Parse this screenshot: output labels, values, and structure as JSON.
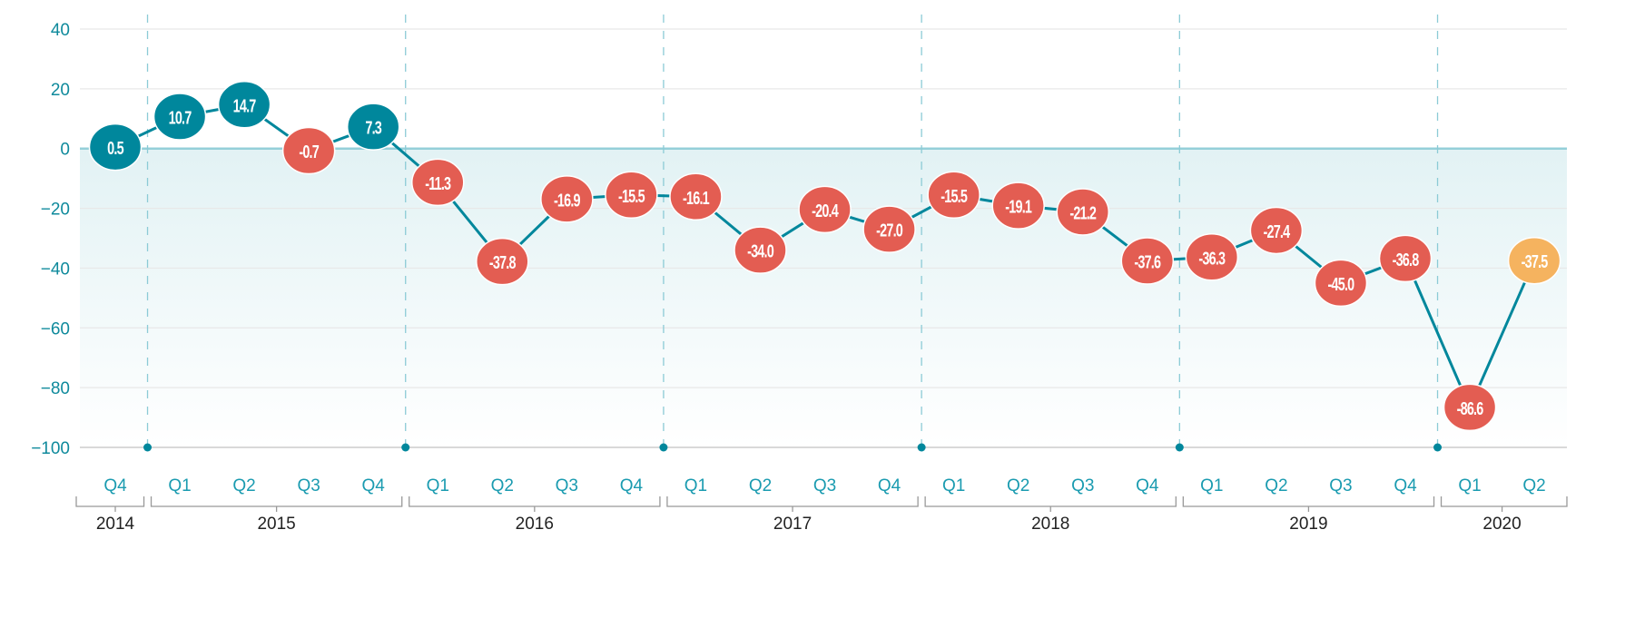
{
  "chart_data": {
    "type": "line",
    "title": "",
    "xlabel": "",
    "ylabel": "",
    "ylim": [
      -100,
      40
    ],
    "yticks": [
      40,
      20,
      0,
      -20,
      -40,
      -60,
      -80,
      -100
    ],
    "grid": true,
    "categories": [
      {
        "year": "2014",
        "q": "Q4"
      },
      {
        "year": "2015",
        "q": "Q1"
      },
      {
        "year": "2015",
        "q": "Q2"
      },
      {
        "year": "2015",
        "q": "Q3"
      },
      {
        "year": "2015",
        "q": "Q4"
      },
      {
        "year": "2016",
        "q": "Q1"
      },
      {
        "year": "2016",
        "q": "Q2"
      },
      {
        "year": "2016",
        "q": "Q3"
      },
      {
        "year": "2016",
        "q": "Q4"
      },
      {
        "year": "2017",
        "q": "Q1"
      },
      {
        "year": "2017",
        "q": "Q2"
      },
      {
        "year": "2017",
        "q": "Q3"
      },
      {
        "year": "2017",
        "q": "Q4"
      },
      {
        "year": "2018",
        "q": "Q1"
      },
      {
        "year": "2018",
        "q": "Q2"
      },
      {
        "year": "2018",
        "q": "Q3"
      },
      {
        "year": "2018",
        "q": "Q4"
      },
      {
        "year": "2019",
        "q": "Q1"
      },
      {
        "year": "2019",
        "q": "Q2"
      },
      {
        "year": "2019",
        "q": "Q3"
      },
      {
        "year": "2019",
        "q": "Q4"
      },
      {
        "year": "2020",
        "q": "Q1"
      },
      {
        "year": "2020",
        "q": "Q2"
      }
    ],
    "years": [
      "2014",
      "2015",
      "2016",
      "2017",
      "2018",
      "2019",
      "2020"
    ],
    "values": [
      0.5,
      10.7,
      14.7,
      -0.7,
      7.3,
      -11.3,
      -37.8,
      -16.9,
      -15.5,
      -16.1,
      -34.0,
      -20.4,
      -27.0,
      -15.5,
      -19.1,
      -21.2,
      -37.6,
      -36.3,
      -27.4,
      -45.0,
      -36.8,
      -86.6,
      -37.5
    ],
    "labels": [
      "0.5",
      "10.7",
      "14.7",
      "-0.7",
      "7.3",
      "-11.3",
      "-37.8",
      "-16.9",
      "-15.5",
      "-16.1",
      "-34.0",
      "-20.4",
      "-27.0",
      "-15.5",
      "-19.1",
      "-21.2",
      "-37.6",
      "-36.3",
      "-27.4",
      "-45.0",
      "-36.8",
      "-86.6",
      "-37.5"
    ],
    "colors": {
      "positive": "#00879c",
      "negative": "#e35d52",
      "last": "#f5b35f",
      "line": "#00879c",
      "zero_line": "#94cfd9",
      "year_divider": "#8ccbd6",
      "area_top": "#e2f2f4"
    }
  }
}
